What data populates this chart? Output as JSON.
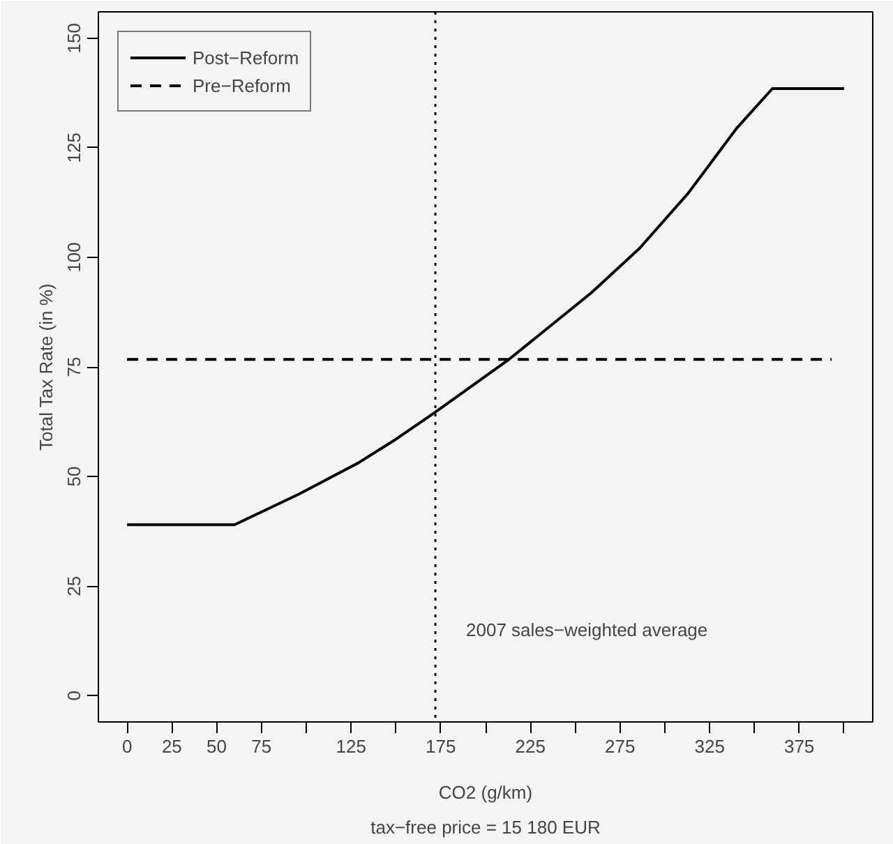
{
  "chart_data": {
    "type": "line",
    "xlabel": "CO2 (g/km)",
    "ylabel": "Total Tax Rate (in %)",
    "annotations": [
      "tax−free price = 15 180 EUR"
    ],
    "xlim": [
      -16,
      416
    ],
    "ylim": [
      -6,
      156
    ],
    "xticks": [
      0,
      25,
      50,
      75,
      {
        "value": 100,
        "label": null
      },
      125,
      {
        "value": 150,
        "label": null
      },
      175,
      {
        "value": 200,
        "label": null
      },
      225,
      {
        "value": 250,
        "label": null
      },
      275,
      {
        "value": 300,
        "label": null
      },
      325,
      {
        "value": 350,
        "label": null
      },
      375,
      {
        "value": 400,
        "label": null
      }
    ],
    "yticks": [
      0,
      25,
      50,
      75,
      100,
      125,
      150
    ],
    "series": [
      {
        "name": "Post−Reform",
        "color": "#000000",
        "line_style": "solid",
        "x": [
          0,
          60,
          96,
          129,
          150,
          171,
          213,
          259,
          286,
          313,
          340,
          360,
          400
        ],
        "values": [
          39,
          39,
          46,
          53.1,
          58.5,
          64.4,
          76.7,
          91.9,
          102.1,
          114.6,
          129.4,
          138.5,
          138.5
        ]
      },
      {
        "name": "Pre−Reform",
        "color": "#000000",
        "line_style": "dashed",
        "x": [
          0,
          393
        ],
        "values": [
          76.7,
          76.7
        ]
      }
    ],
    "ref_lines": [
      {
        "axis": "x",
        "value": 172,
        "label": "2007 sales−weighted average",
        "line_style": "dotted",
        "color": "#000000"
      }
    ],
    "legend": "top left",
    "grid": false
  }
}
